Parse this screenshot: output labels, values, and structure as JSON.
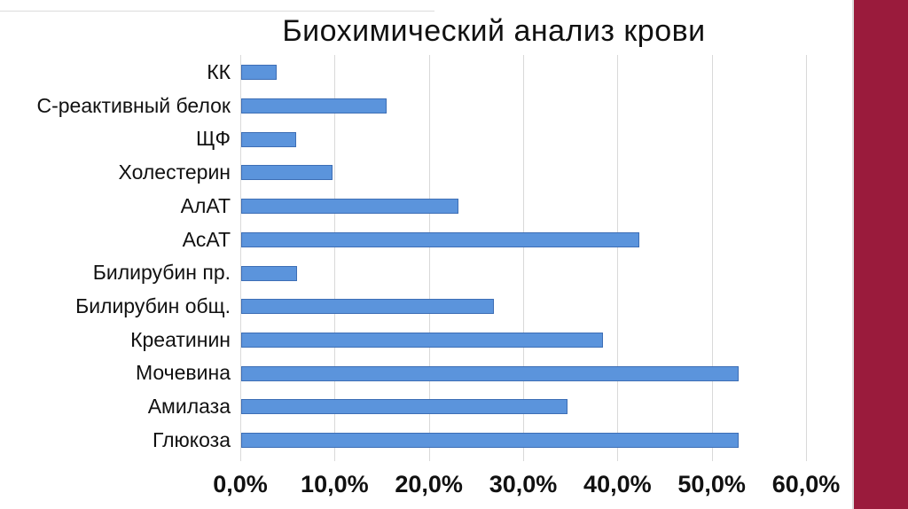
{
  "slide": {
    "title": "Биохимический анализ крови"
  },
  "chart_data": {
    "type": "bar",
    "orientation": "horizontal",
    "title": "Биохимический анализ крови",
    "categories": [
      "КК",
      "С-реактивный белок",
      "ЩФ",
      "Холестерин",
      "АлАТ",
      "АсАТ",
      "Билирубин пр.",
      "Билирубин общ.",
      "Креатинин",
      "Мочевина",
      "Амилаза",
      "Глюкоза"
    ],
    "values": [
      3.8,
      15.4,
      5.8,
      9.7,
      23.0,
      42.2,
      5.9,
      26.8,
      38.4,
      52.8,
      34.6,
      52.8
    ],
    "xlabel": "",
    "ylabel": "",
    "xlim": [
      0,
      60
    ],
    "x_tick_values": [
      0,
      10,
      20,
      30,
      40,
      50,
      60
    ],
    "x_tick_labels": [
      "0,0%",
      "10,0%",
      "20,0%",
      "30,0%",
      "40,0%",
      "50,0%",
      "60,0%"
    ],
    "grid": "vertical gridlines at each x tick",
    "legend": false
  },
  "colors": {
    "bar_fill": "#5b94dc",
    "bar_border": "#3d6eb5",
    "gridline": "#d9d9d9",
    "accent_stripe": "#9a1b3c",
    "background": "#ffffff",
    "text": "#111111"
  }
}
